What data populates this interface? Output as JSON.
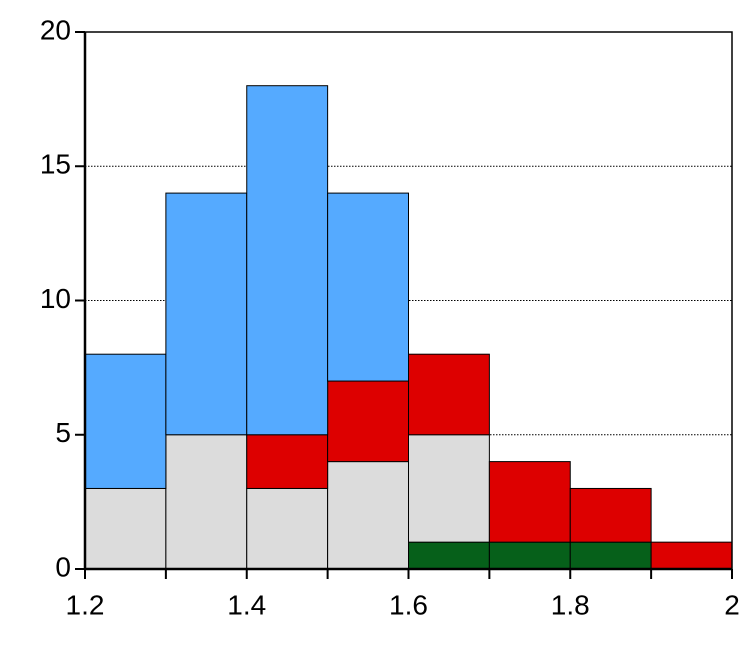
{
  "chart_data": {
    "type": "histogram",
    "bins": [
      1.2,
      1.3,
      1.4,
      1.5,
      1.6,
      1.7,
      1.8,
      1.9,
      2.0
    ],
    "series": [
      {
        "color": "#06601a",
        "values": [
          0,
          0,
          0,
          0,
          1,
          1,
          1,
          0
        ]
      },
      {
        "color": "#dcdcdc",
        "values": [
          3,
          5,
          3,
          4,
          4,
          0,
          0,
          0
        ]
      },
      {
        "color": "#dd0000",
        "values": [
          0,
          0,
          2,
          3,
          3,
          3,
          2,
          1
        ]
      },
      {
        "color": "#55aaff",
        "values": [
          5,
          9,
          13,
          7,
          0,
          0,
          0,
          0
        ]
      }
    ],
    "stacked": true,
    "xlim": [
      1.2,
      2
    ],
    "xticks": [
      1.2,
      1.4,
      1.6,
      1.8,
      2
    ],
    "xminorticks": [
      1.3,
      1.5,
      1.7,
      1.9
    ],
    "ylim": [
      0,
      20
    ],
    "yticks": [
      0,
      5,
      10,
      15,
      20
    ],
    "grid": true
  }
}
